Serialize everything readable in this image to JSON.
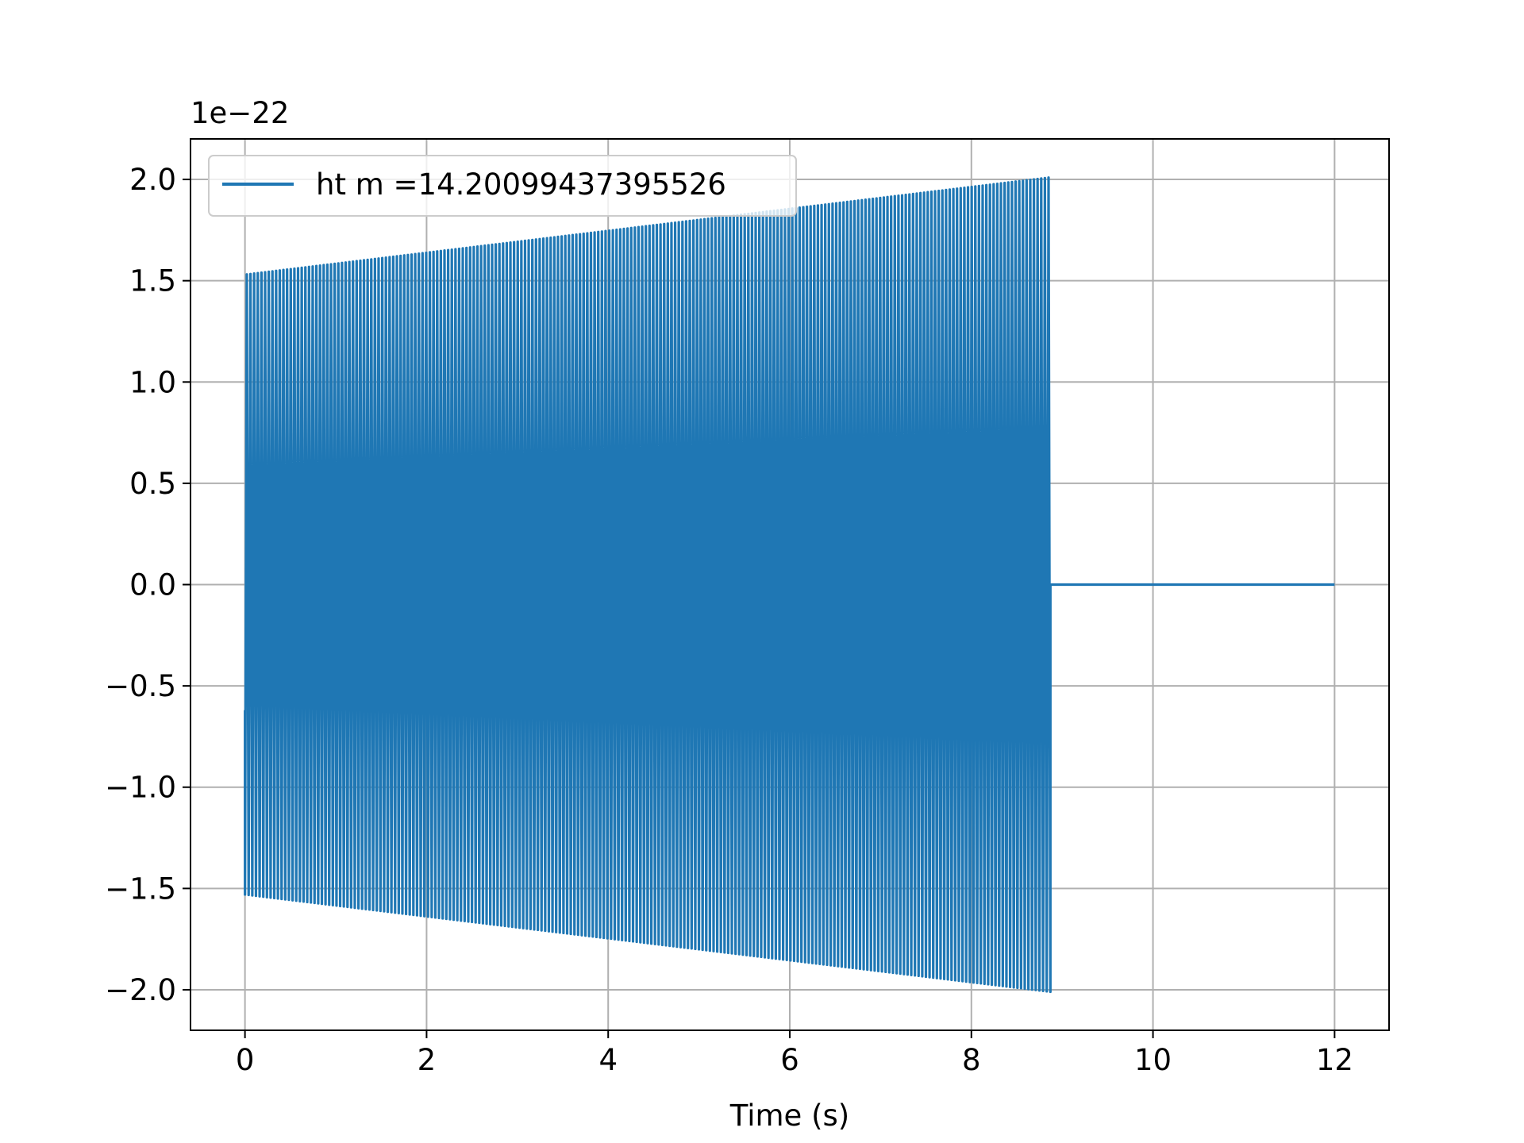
{
  "chart_data": {
    "type": "line",
    "xlabel": "Time (s)",
    "ylabel": "",
    "title": "",
    "y_offset_text": "1e−22",
    "y_scale_exponent": -22,
    "xlim": [
      -0.6,
      12.6
    ],
    "ylim": [
      -2.2,
      2.2
    ],
    "x_ticks": [
      0,
      2,
      4,
      6,
      8,
      10,
      12
    ],
    "x_tick_labels": [
      "0",
      "2",
      "4",
      "6",
      "8",
      "10",
      "12"
    ],
    "y_ticks": [
      2.0,
      1.5,
      1.0,
      0.5,
      0.0,
      -0.5,
      -1.0,
      -1.5,
      -2.0
    ],
    "y_tick_labels": [
      "2.0",
      "1.5",
      "1.0",
      "0.5",
      "0.0",
      "−0.5",
      "−1.0",
      "−1.5",
      "−2.0"
    ],
    "grid": true,
    "legend_position": "upper-left",
    "series": [
      {
        "name": "ht m =14.20099437395526",
        "color": "#1f77b4",
        "t_start": 0.0,
        "t_merge": 8.87,
        "t_end": 12.0,
        "amplitude_start": 1.53,
        "amplitude_end": 2.01,
        "initial_value": -0.62,
        "cycles": 220
      }
    ]
  }
}
